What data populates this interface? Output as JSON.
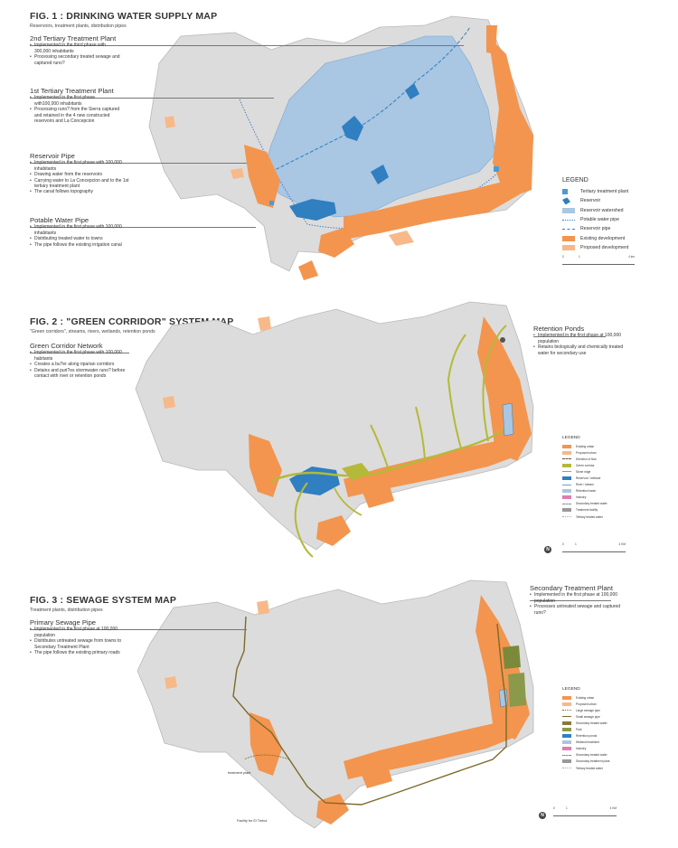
{
  "colors": {
    "terrain": "#dcdcdc",
    "terrain_edge": "#b9b9b9",
    "existing_development": "#f3954f",
    "proposed_development": "#f7b98a",
    "reservoir_blue": "#2f7fc1",
    "watershed": "#a9c6e2",
    "green_corridor": "#b5b93a",
    "sewage_pipe": "#7a6a2a"
  },
  "fig1": {
    "title": "FIG. 1 : DRINKING WATER SUPPLY MAP",
    "subtitle": "Reservoirs, treatment plants, distribution pipes",
    "annotations": [
      {
        "title": "2nd Tertiary Treatment Plant",
        "bullets": [
          "Implemented in the third phase with 300,000 inhabitants",
          "Processing secondary treated sewage and captured runo?"
        ]
      },
      {
        "title": "1st Tertiary Treatment Plant",
        "bullets": [
          "Implemented in the first phase with100,000 inhabitants",
          "Processing runo? from the Sierra captured and retained in the 4 new constructed reservoirs and La Concepcion"
        ]
      },
      {
        "title": "Reservoir Pipe",
        "bullets": [
          "Implemented in the first phase with 100,000 inhabitants",
          "Drawing water from the reservoirs",
          "Carrying water to La Concepcion and to the 1st tertiary treatment plant",
          "The canal follows topography"
        ]
      },
      {
        "title": "Potable Water Pipe",
        "bullets": [
          "Implemented in the first phase with 100,000 inhabitants",
          "Distributing treated water to towns",
          "The pipe follows the existing irrigation canal"
        ]
      }
    ],
    "legend": {
      "title": "LEGEND",
      "items": [
        "Tertiary treatment plant",
        "Reservoir",
        "Reservoir watershed",
        "Potable water pipe",
        "Reservoir pipe",
        "Existing development",
        "Proposed development"
      ]
    },
    "scale": [
      "0",
      "1",
      "4 km"
    ]
  },
  "fig2": {
    "title": "FIG. 2 : \"GREEN CORRIDOR\" SYSTEM MAP",
    "subtitle": "\"Green corridors\", streams, rivers, wetlands, retention ponds",
    "annotations": [
      {
        "title": "Green Corridor Network",
        "bullets": [
          "Implemented in the first phase with 100,000 habitants",
          "Creates a bu?er along riparian corridors",
          "Detains and puri?es stormwater runo? before contact with river or retention ponds"
        ]
      },
      {
        "title": "Retention Ponds",
        "bullets": [
          "Implemented in the first phase at 100,000 population",
          "Retains biologically and chemically treated water for secondary use"
        ]
      }
    ],
    "legend": {
      "title": "LEGEND",
      "items": [
        "Existing urban",
        "Proposed urban",
        "Direction of flow",
        "Green corridor",
        "Stone edge",
        "Reservoir / wetland",
        "River / stream",
        "Retention basin",
        "Industry",
        "Secondary treated water",
        "Treatment facility",
        "Tertiary treated water"
      ]
    },
    "scale": [
      "0",
      "1",
      "4 KM"
    ]
  },
  "fig3": {
    "title": "FIG.  3 : SEWAGE SYSTEM MAP",
    "subtitle": "Treatment plants, distribution pipes",
    "annotations": [
      {
        "title": "Primary Sewage Pipe",
        "bullets": [
          "Implemented in the first phase at 100,000 population",
          "Distributes untreated sewage from towns to Secondary Treatment Plant",
          "The pipe follows the existing primary roads"
        ]
      },
      {
        "title": "Secondary Treatment Plant",
        "bullets": [
          "Implemented in the first phase at 100,000 population",
          "Processes untreated sewage and captured runo?"
        ]
      }
    ],
    "map_labels": [
      "treatment plant",
      "Facility for El Trebol"
    ],
    "legend": {
      "title": "LEGEND",
      "items": [
        "Existing urban",
        "Proposed urban",
        "Large sewage pipe",
        "Small sewage pipe",
        "Secondary treated water",
        "Park",
        "Retention ponds",
        "Wetland treatment",
        "Industry",
        "Secondary treated water",
        "Secondary treatment plant",
        "Tertiary treated water"
      ]
    },
    "scale": [
      "0",
      "1",
      "4 KM"
    ]
  }
}
